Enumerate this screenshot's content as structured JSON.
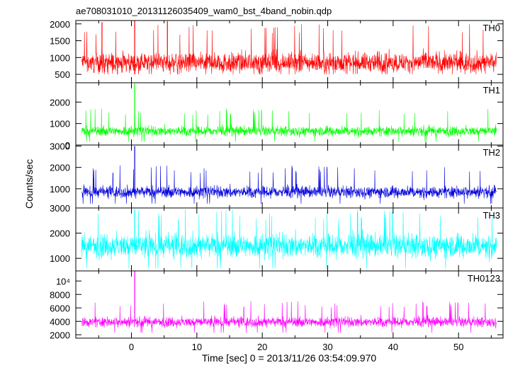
{
  "chart_data": {
    "type": "line",
    "title": "ae708031010_20131126035409_wam0_bst_4band_nobin.qdp",
    "xlabel": "Time [sec] 0 = 2013/11/26 03:54:09.970",
    "ylabel": "Counts/sec",
    "xlim": [
      -8.5,
      56.8
    ],
    "x_ticks": [
      0,
      10,
      20,
      30,
      40,
      50
    ],
    "x_tick_labels": [
      "0",
      "10",
      "20",
      "30",
      "40",
      "50"
    ],
    "x_data_range": [
      -7.6,
      55.8
    ],
    "panels": [
      {
        "name": "TH0",
        "color": "#ff0000",
        "ylim": [
          250,
          2100
        ],
        "y_ticks": [
          500,
          1000,
          1500,
          2000
        ],
        "y_tick_labels": [
          "500",
          "1000",
          "1500",
          "2000"
        ],
        "baseline": 850,
        "noise": 280,
        "min": 500,
        "max": 2000,
        "spikes": [
          {
            "x": 0.5,
            "y": 2100
          },
          {
            "x": 5.5,
            "y": 2080
          },
          {
            "x": -4.5,
            "y": 2050
          }
        ]
      },
      {
        "name": "TH1",
        "color": "#00ff00",
        "ylim": [
          0,
          2900
        ],
        "y_ticks": [
          0,
          1000,
          2000
        ],
        "y_tick_labels": [
          "0",
          "1000",
          "2000"
        ],
        "baseline": 650,
        "noise": 220,
        "min": 150,
        "max": 1700,
        "spikes": [
          {
            "x": 0.5,
            "y": 2850
          }
        ]
      },
      {
        "name": "TH2",
        "color": "#0000dd",
        "ylim": [
          100,
          3050
        ],
        "y_ticks": [
          1000,
          2000,
          3000
        ],
        "y_tick_labels": [
          "1000",
          "2000",
          "3000"
        ],
        "baseline": 850,
        "noise": 260,
        "min": 300,
        "max": 2100,
        "spikes": [
          {
            "x": 0.5,
            "y": 3000
          }
        ]
      },
      {
        "name": "TH3",
        "color": "#00ffff",
        "ylim": [
          500,
          3000
        ],
        "y_ticks": [
          1000,
          2000,
          3000
        ],
        "y_tick_labels": [
          "1000",
          "2000",
          "3000"
        ],
        "baseline": 1500,
        "noise": 450,
        "min": 600,
        "max": 2950,
        "spikes": [
          {
            "x": 0.5,
            "y": 2950
          }
        ]
      },
      {
        "name": "TH0123",
        "color": "#ff00ff",
        "ylim": [
          1500,
          11500
        ],
        "y_ticks": [
          2000,
          4000,
          6000,
          8000,
          10000
        ],
        "y_tick_labels": [
          "2000",
          "4000",
          "6000",
          "8000",
          "10⁴"
        ],
        "baseline": 3900,
        "noise": 700,
        "min": 2300,
        "max": 7000,
        "spikes": [
          {
            "x": 0.5,
            "y": 11500
          }
        ]
      }
    ],
    "grid": false,
    "legend": "panel labels top-right"
  }
}
